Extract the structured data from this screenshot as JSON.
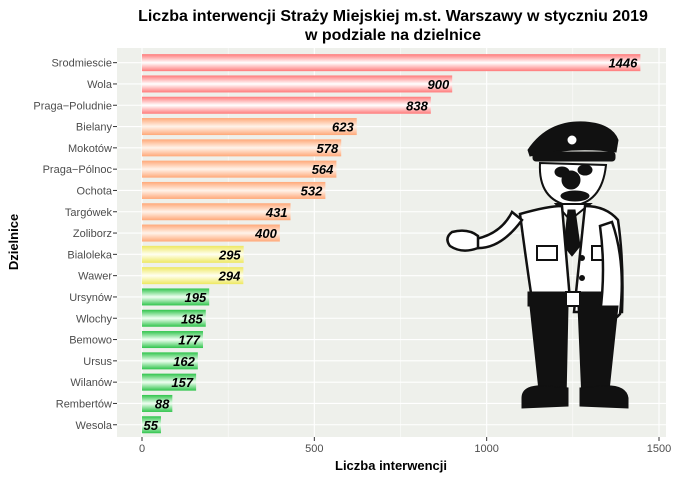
{
  "chart_data": {
    "type": "bar",
    "orientation": "horizontal",
    "title": "Liczba interwencji Straży Miejskiej m.st. Warszawy w styczniu 2019",
    "subtitle": "w podziale na dzielnice",
    "xlabel": "Liczba interwencji",
    "ylabel": "Dzielnice",
    "xlim": [
      0,
      1500
    ],
    "x_ticks": [
      0,
      500,
      1000,
      1500
    ],
    "grid": true,
    "legend": "none",
    "categories": [
      "Srodmiescie",
      "Wola",
      "Praga-Poludnie",
      "Bielany",
      "Mokotów",
      "Praga-Pólnoc",
      "Ochota",
      "Targówek",
      "Zoliborz",
      "Bialoleka",
      "Wawer",
      "Ursynów",
      "Wlochy",
      "Bemowo",
      "Ursus",
      "Wilanów",
      "Rembertów",
      "Wesola"
    ],
    "category_labels": [
      "Srodmiescie",
      "Wola",
      "Praga−Poludnie",
      "Bielany",
      "Mokotów",
      "Praga−Pólnoc",
      "Ochota",
      "Targówek",
      "Zoliborz",
      "Bialoleka",
      "Wawer",
      "Ursynów",
      "Wlochy",
      "Bemowo",
      "Ursus",
      "Wilanów",
      "Rembertów",
      "Wesola"
    ],
    "values": [
      1446,
      900,
      838,
      623,
      578,
      564,
      532,
      431,
      400,
      295,
      294,
      195,
      185,
      177,
      162,
      157,
      88,
      55
    ],
    "bar_color_groups": [
      "red",
      "red",
      "red",
      "orange",
      "orange",
      "orange",
      "orange",
      "orange",
      "orange",
      "yellow",
      "yellow",
      "green",
      "green",
      "green",
      "green",
      "green",
      "green",
      "green"
    ],
    "colors": {
      "red": "#ff8f8f",
      "orange": "#ffb98c",
      "yellow": "#f2ee70",
      "green": "#3ecb55",
      "panel_background": "#eef0eb",
      "grid": "#ffffff"
    }
  }
}
